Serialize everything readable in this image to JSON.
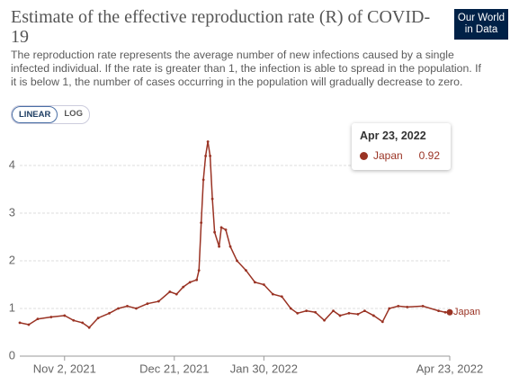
{
  "chart_data": {
    "type": "line",
    "title": "Estimate of the effective reproduction rate (R) of COVID-19",
    "subtitle": "The reproduction rate represents the average number of new infections caused by a single infected individual. If the rate is greater than 1, the infection is able to spread in the population. If it is below 1, the number of cases occurring in the population will gradually decrease to zero.",
    "logo": [
      "Our World",
      "in Data"
    ],
    "scale_buttons": [
      "LINEAR",
      "LOG"
    ],
    "tooltip_date": "Apr 23, 2022",
    "x": [
      "2021-10-13",
      "2021-10-17",
      "2021-10-21",
      "2021-10-27",
      "2021-11-02",
      "2021-11-06",
      "2021-11-10",
      "2021-11-13",
      "2021-11-17",
      "2021-11-22",
      "2021-11-26",
      "2021-11-30",
      "2021-12-04",
      "2021-12-09",
      "2021-12-14",
      "2021-12-19",
      "2021-12-22",
      "2021-12-25",
      "2021-12-28",
      "2021-12-31",
      "2022-01-01",
      "2022-01-02",
      "2022-01-03",
      "2022-01-04",
      "2022-01-05",
      "2022-01-06",
      "2022-01-07",
      "2022-01-08",
      "2022-01-10",
      "2022-01-11",
      "2022-01-13",
      "2022-01-15",
      "2022-01-18",
      "2022-01-22",
      "2022-01-26",
      "2022-01-30",
      "2022-02-03",
      "2022-02-07",
      "2022-02-11",
      "2022-02-14",
      "2022-02-18",
      "2022-02-22",
      "2022-02-26",
      "2022-03-02",
      "2022-03-05",
      "2022-03-09",
      "2022-03-13",
      "2022-03-16",
      "2022-03-20",
      "2022-03-24",
      "2022-03-27",
      "2022-03-31",
      "2022-04-04",
      "2022-04-11",
      "2022-04-18",
      "2022-04-21",
      "2022-04-23"
    ],
    "series": [
      {
        "name": "Japan",
        "color": "#9a3324",
        "values": [
          0.7,
          0.66,
          0.78,
          0.82,
          0.85,
          0.75,
          0.7,
          0.6,
          0.8,
          0.9,
          1.0,
          1.05,
          1.0,
          1.1,
          1.15,
          1.35,
          1.3,
          1.45,
          1.55,
          1.6,
          1.8,
          2.8,
          3.7,
          4.2,
          4.5,
          4.2,
          3.3,
          2.6,
          2.3,
          2.7,
          2.65,
          2.3,
          2.0,
          1.8,
          1.55,
          1.5,
          1.3,
          1.25,
          1.0,
          0.9,
          0.95,
          0.92,
          0.75,
          0.95,
          0.85,
          0.9,
          0.88,
          0.95,
          0.85,
          0.72,
          1.0,
          1.05,
          1.03,
          1.05,
          0.95,
          0.92,
          0.92
        ]
      }
    ],
    "xlim": [
      "2021-10-13",
      "2022-04-23"
    ],
    "xticks": [
      {
        "value": "2021-11-02",
        "label": "Nov 2, 2021"
      },
      {
        "value": "2021-12-21",
        "label": "Dec 21, 2021"
      },
      {
        "value": "2022-01-30",
        "label": "Jan 30, 2022"
      },
      {
        "value": "2022-04-23",
        "label": "Apr 23, 2022"
      }
    ],
    "ylim": [
      0,
      4.6
    ],
    "yticks": [
      0,
      1,
      2,
      3,
      4
    ],
    "grid": true
  }
}
